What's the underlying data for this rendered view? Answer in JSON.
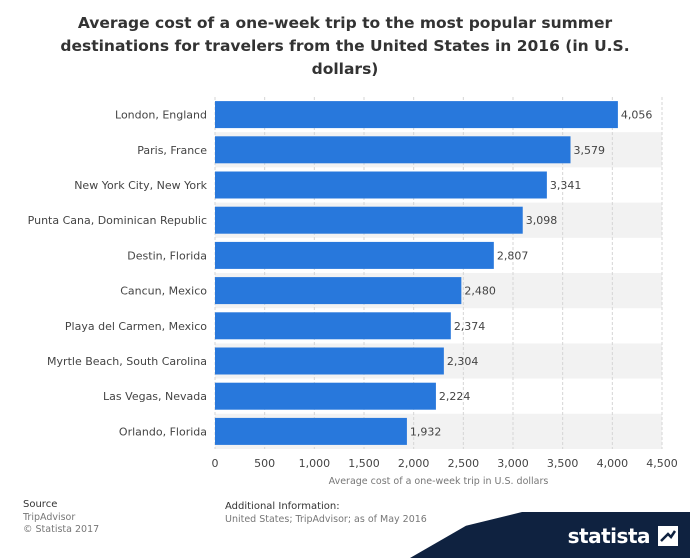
{
  "chart_data": {
    "type": "bar",
    "orientation": "horizontal",
    "title": "Average cost of a one-week trip to the most popular summer destinations for travelers from the United States in 2016 (in U.S. dollars)",
    "title_lines": [
      "Average cost of a one-week trip to the most popular summer",
      "destinations for travelers from the United States in 2016 (in U.S.",
      "dollars)"
    ],
    "categories": [
      "London, England",
      "Paris, France",
      "New York City, New York",
      "Punta Cana, Dominican Republic",
      "Destin, Florida",
      "Cancun, Mexico",
      "Playa del Carmen, Mexico",
      "Myrtle Beach, South Carolina",
      "Las Vegas, Nevada",
      "Orlando, Florida"
    ],
    "values": [
      4056,
      3579,
      3341,
      3098,
      2807,
      2480,
      2374,
      2304,
      2224,
      1932
    ],
    "value_labels": [
      "4,056",
      "3,579",
      "3,341",
      "3,098",
      "2,807",
      "2,480",
      "2,374",
      "2,304",
      "2,224",
      "1,932"
    ],
    "xlabel": "Average cost of a one-week trip in U.S. dollars",
    "ylabel": "",
    "xlim": [
      0,
      4500
    ],
    "xticks": [
      0,
      500,
      1000,
      1500,
      2000,
      2500,
      3000,
      3500,
      4000,
      4500
    ],
    "xtick_labels": [
      "0",
      "500",
      "1,000",
      "1,500",
      "2,000",
      "2,500",
      "3,000",
      "3,500",
      "4,000",
      "4,500"
    ],
    "grid": true,
    "colors": {
      "bar": "#2878dc",
      "band": "#f2f2f2",
      "grid": "#d6d6d6",
      "text": "#444444",
      "axis_label": "#777777"
    }
  },
  "footer": {
    "source_heading": "Source",
    "source_lines": [
      "TripAdvisor",
      "© Statista 2017"
    ],
    "info_heading": "Additional Information:",
    "info_text": "United States; TripAdvisor; as of May 2016"
  },
  "brand": {
    "name": "statista",
    "color": "#0f2240"
  }
}
